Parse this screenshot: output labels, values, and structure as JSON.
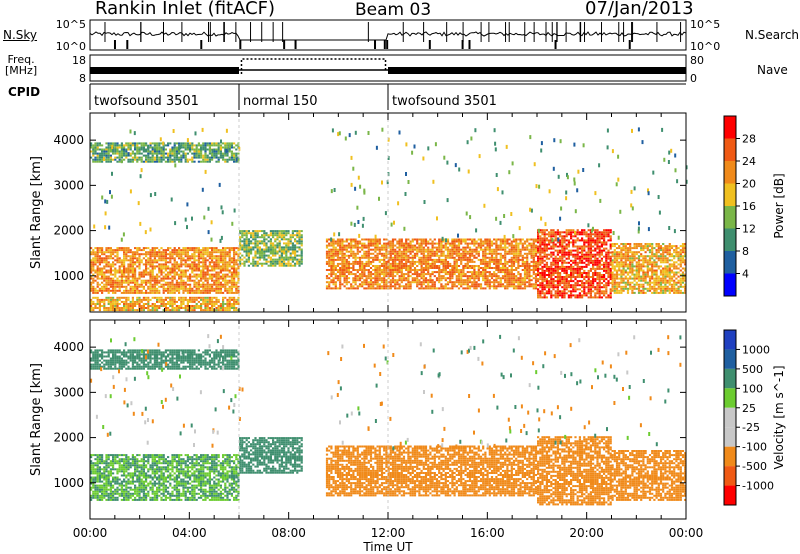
{
  "header": {
    "title": "Rankin Inlet (fitACF)",
    "beam": "Beam 03",
    "date": "07/Jan/2013"
  },
  "side_labels": {
    "nsky": "N.Sky",
    "nsearch": "N.Search",
    "freq_line1": "Freq.",
    "freq_line2": "[MHz]",
    "nave": "Nave",
    "cpid": "CPID"
  },
  "status_ticks": {
    "nsky_left": [
      "10^5",
      "10^0"
    ],
    "nsearch_right": [
      "10^5",
      "10^0"
    ],
    "freq_left": [
      "18",
      "8"
    ],
    "nave_right": [
      "80",
      "0"
    ]
  },
  "cpid_segments": [
    {
      "label": "twofsound 3501",
      "start_h": 0,
      "end_h": 6
    },
    {
      "label": "normal 150",
      "start_h": 6,
      "end_h": 12
    },
    {
      "label": "twofsound 3501",
      "start_h": 12,
      "end_h": 24
    }
  ],
  "colors": {
    "power_scale": [
      "#0000ff",
      "#1f5fa0",
      "#3f8f6f",
      "#7ab648",
      "#f0c020",
      "#f08a1a",
      "#f05a14",
      "#ff0000"
    ],
    "velocity_scale": [
      "#ff0000",
      "#f05a14",
      "#f08a1a",
      "#c8c8c8",
      "#c8c8c8",
      "#6ccc30",
      "#3f8f6f",
      "#1f5fa0",
      "#2040c0"
    ]
  },
  "chart_data": [
    {
      "type": "heatmap",
      "panel": "power",
      "ylabel": "Slant Range [km]",
      "yticks": [
        "1000",
        "2000",
        "3000",
        "4000"
      ],
      "ylim": [
        200,
        4600
      ],
      "xlim": [
        0,
        24
      ],
      "colorbar": {
        "label": "Power [dB]",
        "ticks": [
          "4",
          "8",
          "12",
          "16",
          "20",
          "24",
          "28"
        ]
      },
      "bands": [
        {
          "t_start": 0,
          "t_end": 6,
          "r_min": 600,
          "r_max": 1600,
          "value": 24
        },
        {
          "t_start": 0,
          "t_end": 6,
          "r_min": 3500,
          "r_max": 3950,
          "value": 14
        },
        {
          "t_start": 0,
          "t_end": 6,
          "r_min": 220,
          "r_max": 500,
          "value": 22
        },
        {
          "t_start": 6,
          "t_end": 8.5,
          "r_min": 1200,
          "r_max": 2000,
          "value": 16
        },
        {
          "t_start": 9.5,
          "t_end": 18,
          "r_min": 700,
          "r_max": 1800,
          "value": 25
        },
        {
          "t_start": 18,
          "t_end": 21,
          "r_min": 500,
          "r_max": 2000,
          "value": 29
        },
        {
          "t_start": 21,
          "t_end": 24,
          "r_min": 600,
          "r_max": 1700,
          "value": 22
        }
      ]
    },
    {
      "type": "heatmap",
      "panel": "velocity",
      "xlabel": "Time UT",
      "ylabel": "Slant Range [km]",
      "yticks": [
        "1000",
        "2000",
        "3000",
        "4000"
      ],
      "xticks": [
        "00:00",
        "04:00",
        "08:00",
        "12:00",
        "16:00",
        "20:00",
        "00:00"
      ],
      "ylim": [
        200,
        4600
      ],
      "xlim": [
        0,
        24
      ],
      "colorbar": {
        "label": "Velocity [m s^-1]",
        "ticks": [
          "1000",
          "500",
          "100",
          "25",
          "-25",
          "-100",
          "-500",
          "-1000"
        ]
      },
      "bands": [
        {
          "t_start": 0,
          "t_end": 6,
          "r_min": 600,
          "r_max": 1600,
          "value": 100
        },
        {
          "t_start": 0,
          "t_end": 6,
          "r_min": 3500,
          "r_max": 3950,
          "value": 200
        },
        {
          "t_start": 6,
          "t_end": 8.5,
          "r_min": 1200,
          "r_max": 2000,
          "value": 150
        },
        {
          "t_start": 9.5,
          "t_end": 18,
          "r_min": 700,
          "r_max": 1800,
          "value": -150
        },
        {
          "t_start": 18,
          "t_end": 21,
          "r_min": 500,
          "r_max": 2000,
          "value": -120
        },
        {
          "t_start": 21,
          "t_end": 24,
          "r_min": 600,
          "r_max": 1700,
          "value": -250
        }
      ]
    }
  ]
}
